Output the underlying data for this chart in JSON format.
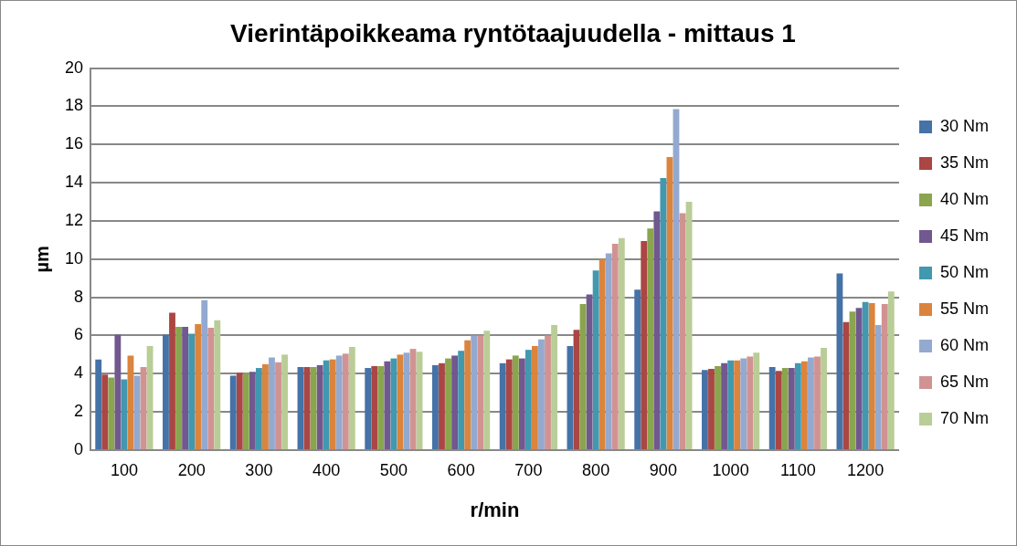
{
  "chart_data": {
    "type": "bar",
    "title": "Vierintäpoikkeama ryntötaajuudella - mittaus 1",
    "xlabel": "r/min",
    "ylabel": "µm",
    "categories": [
      "100",
      "200",
      "300",
      "400",
      "500",
      "600",
      "700",
      "800",
      "900",
      "1000",
      "1100",
      "1200"
    ],
    "ylim": [
      0,
      20
    ],
    "yticks": [
      0,
      2,
      4,
      6,
      8,
      10,
      12,
      14,
      16,
      18,
      20
    ],
    "grid": "y",
    "legend": "right",
    "series": [
      {
        "name": "30 Nm",
        "color": "#4572a7",
        "values": [
          4.75,
          6.05,
          3.9,
          4.35,
          4.3,
          4.45,
          4.55,
          5.45,
          8.4,
          4.2,
          4.35,
          9.25
        ]
      },
      {
        "name": "35 Nm",
        "color": "#aa4643",
        "values": [
          3.95,
          7.2,
          4.05,
          4.35,
          4.4,
          4.55,
          4.75,
          6.3,
          10.95,
          4.25,
          4.15,
          6.7
        ]
      },
      {
        "name": "40 Nm",
        "color": "#89a54e",
        "values": [
          3.8,
          6.45,
          4.05,
          4.35,
          4.4,
          4.8,
          4.95,
          7.65,
          11.6,
          4.4,
          4.3,
          7.25
        ]
      },
      {
        "name": "45 Nm",
        "color": "#71588f",
        "values": [
          6.05,
          6.45,
          4.1,
          4.45,
          4.65,
          4.95,
          4.8,
          8.15,
          12.5,
          4.55,
          4.3,
          7.45
        ]
      },
      {
        "name": "50 Nm",
        "color": "#4198af",
        "values": [
          3.7,
          6.1,
          4.3,
          4.7,
          4.8,
          5.2,
          5.25,
          9.4,
          14.25,
          4.7,
          4.55,
          7.75
        ]
      },
      {
        "name": "55 Nm",
        "color": "#db843d",
        "values": [
          4.95,
          6.6,
          4.5,
          4.75,
          5.0,
          5.75,
          5.45,
          10.0,
          15.35,
          4.7,
          4.65,
          7.7
        ]
      },
      {
        "name": "60 Nm",
        "color": "#93a9cf",
        "values": [
          3.9,
          7.85,
          4.85,
          4.95,
          5.1,
          6.0,
          5.8,
          10.3,
          17.85,
          4.8,
          4.85,
          6.55
        ]
      },
      {
        "name": "65 Nm",
        "color": "#d19392",
        "values": [
          4.35,
          6.4,
          4.6,
          5.05,
          5.3,
          6.0,
          6.0,
          10.8,
          12.4,
          4.9,
          4.9,
          7.65
        ]
      },
      {
        "name": "70 Nm",
        "color": "#b9cd96",
        "values": [
          5.45,
          6.8,
          5.0,
          5.4,
          5.15,
          6.25,
          6.55,
          11.1,
          13.0,
          5.1,
          5.35,
          8.3
        ]
      }
    ]
  }
}
